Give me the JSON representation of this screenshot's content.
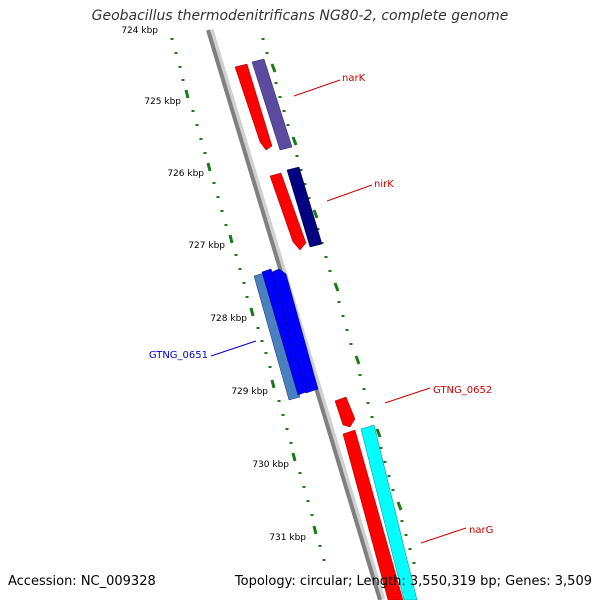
{
  "title": "Geobacillus thermodenitrificans NG80-2, complete genome",
  "footer": {
    "accession": "Accession: NC_009328",
    "summary": "Topology: circular; Length: 3,550,319 bp; Genes: 3,509"
  },
  "ticks": [
    "724 kbp",
    "725 kbp",
    "726 kbp",
    "727 kbp",
    "728 kbp",
    "729 kbp",
    "730 kbp",
    "731 kbp"
  ],
  "genes": [
    {
      "label": "narK",
      "color": "#cc0000"
    },
    {
      "label": "nirK",
      "color": "#cc0000"
    },
    {
      "label": "GTNG_0651",
      "color": "#0000cc"
    },
    {
      "label": "GTNG_0652",
      "color": "#cc0000"
    },
    {
      "label": "narG",
      "color": "#cc0000"
    }
  ],
  "colors": {
    "backbone": "#808080",
    "tick": "#1a7a1a",
    "cds_forward": "#ff0000",
    "cds_reverse": "#0000ff",
    "gene_narK": "#5a4aa0",
    "gene_nirK": "#000080",
    "gene_0651": "#4a80c0",
    "gene_narG": "#00ffff"
  }
}
